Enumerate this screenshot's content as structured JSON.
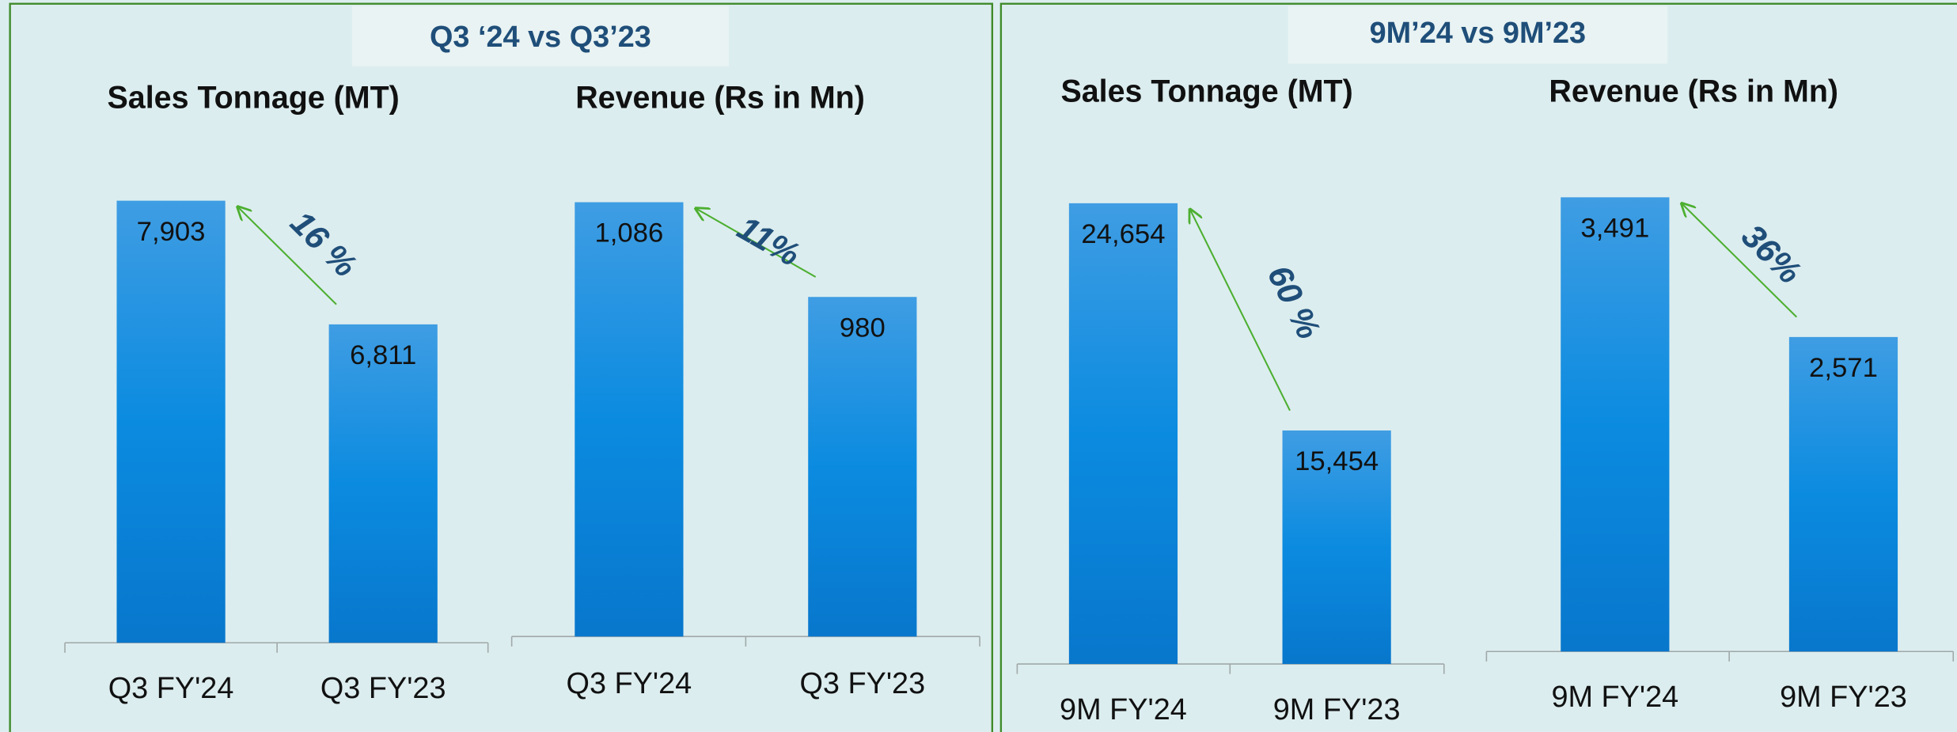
{
  "panels": [
    {
      "title": "Q3 ‘24 vs Q3’23"
    },
    {
      "title": "9M’24 vs 9M’23"
    }
  ],
  "chart_data": [
    {
      "type": "bar",
      "title": "Sales Tonnage (MT)",
      "categories": [
        "Q3 FY'24",
        "Q3 FY'23"
      ],
      "values": [
        7903,
        6811
      ],
      "value_labels": [
        "7,903",
        "6,811"
      ],
      "annotation": "16 %",
      "ylim": [
        4000,
        8000
      ],
      "color": "#1487dc"
    },
    {
      "type": "bar",
      "title": "Revenue (Rs in Mn)",
      "categories": [
        "Q3 FY'24",
        "Q3 FY'23"
      ],
      "values": [
        1086,
        980
      ],
      "value_labels": [
        "1,086",
        "980"
      ],
      "annotation": "11%",
      "ylim": [
        600,
        1100
      ],
      "color": "#1487dc"
    },
    {
      "type": "bar",
      "title": "Sales Tonnage (MT)",
      "categories": [
        "9M FY'24",
        "9M FY'23"
      ],
      "values": [
        24654,
        15454
      ],
      "value_labels": [
        "24,654",
        "15,454"
      ],
      "annotation": "60 %",
      "ylim": [
        6000,
        25000
      ],
      "color": "#1487dc"
    },
    {
      "type": "bar",
      "title": "Revenue (Rs in Mn)",
      "categories": [
        "9M FY'24",
        "9M FY'23"
      ],
      "values": [
        3491,
        2571
      ],
      "value_labels": [
        "3,491",
        "2,571"
      ],
      "annotation": "36%",
      "ylim": [
        500,
        3500
      ],
      "color": "#1487dc"
    }
  ]
}
